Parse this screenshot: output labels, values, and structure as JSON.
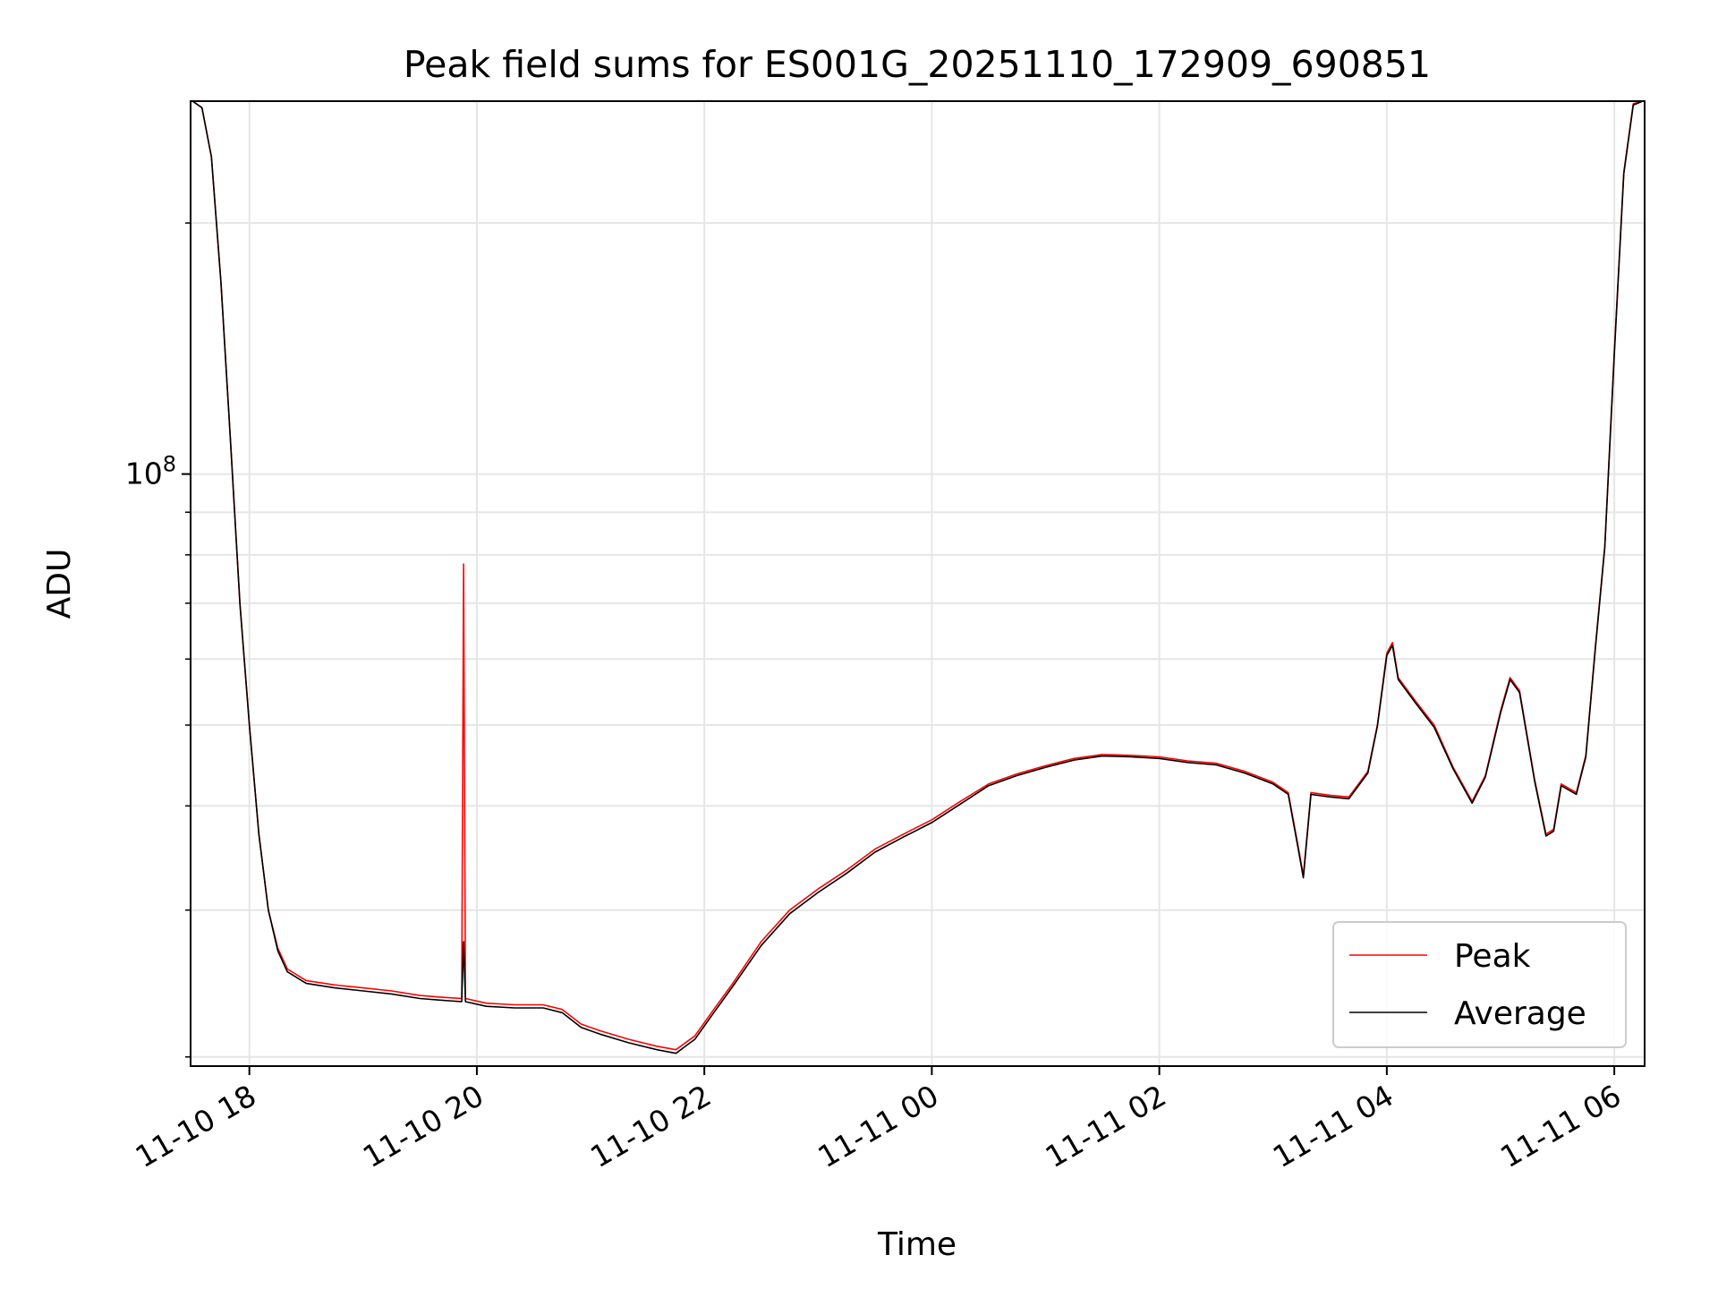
{
  "chart_data": {
    "type": "line",
    "title": "Peak field sums for ES001G_20251110_172909_690851",
    "xlabel": "Time",
    "ylabel": "ADU",
    "xlim": [
      "2025-11-10 17:29",
      "2025-11-11 06:16"
    ],
    "ylim": [
      19500000,
      280000000
    ],
    "yscale": "log",
    "grid": true,
    "legend_position": "lower-right",
    "x_tick_labels": [
      "11-10 18",
      "11-10 20",
      "11-10 22",
      "11-11 00",
      "11-11 02",
      "11-11 04",
      "11-11 06"
    ],
    "x_tick_values": [
      "2025-11-10 18:00",
      "2025-11-10 20:00",
      "2025-11-10 22:00",
      "2025-11-11 00:00",
      "2025-11-11 02:00",
      "2025-11-11 04:00",
      "2025-11-11 06:00"
    ],
    "y_tick_labels": [
      "10^8"
    ],
    "y_tick_values": [
      100000000
    ],
    "y_minor_tick_values": [
      20000000,
      30000000,
      40000000,
      50000000,
      60000000,
      70000000,
      80000000,
      90000000,
      200000000
    ],
    "series": [
      {
        "name": "Peak",
        "color": "#ff0000",
        "points": [
          [
            "2025-11-10 17:30",
            280000000
          ],
          [
            "2025-11-10 17:35",
            275000000
          ],
          [
            "2025-11-10 17:40",
            240000000
          ],
          [
            "2025-11-10 17:45",
            170000000
          ],
          [
            "2025-11-10 17:50",
            110000000
          ],
          [
            "2025-11-10 17:55",
            70000000
          ],
          [
            "2025-11-10 18:00",
            50000000
          ],
          [
            "2025-11-10 18:05",
            37000000
          ],
          [
            "2025-11-10 18:10",
            30000000
          ],
          [
            "2025-11-10 18:15",
            27000000
          ],
          [
            "2025-11-10 18:20",
            25500000
          ],
          [
            "2025-11-10 18:30",
            24700000
          ],
          [
            "2025-11-10 18:45",
            24400000
          ],
          [
            "2025-11-10 19:00",
            24200000
          ],
          [
            "2025-11-10 19:15",
            24000000
          ],
          [
            "2025-11-10 19:30",
            23700000
          ],
          [
            "2025-11-10 19:40",
            23600000
          ],
          [
            "2025-11-10 19:52",
            23500000
          ],
          [
            "2025-11-10 19:53",
            78000000
          ],
          [
            "2025-11-10 19:54",
            23500000
          ],
          [
            "2025-11-10 20:05",
            23200000
          ],
          [
            "2025-11-10 20:20",
            23100000
          ],
          [
            "2025-11-10 20:35",
            23100000
          ],
          [
            "2025-11-10 20:45",
            22800000
          ],
          [
            "2025-11-10 20:55",
            21900000
          ],
          [
            "2025-11-10 21:05",
            21500000
          ],
          [
            "2025-11-10 21:20",
            21000000
          ],
          [
            "2025-11-10 21:35",
            20600000
          ],
          [
            "2025-11-10 21:45",
            20400000
          ],
          [
            "2025-11-10 21:55",
            21200000
          ],
          [
            "2025-11-10 22:05",
            22800000
          ],
          [
            "2025-11-10 22:15",
            24500000
          ],
          [
            "2025-11-10 22:30",
            27500000
          ],
          [
            "2025-11-10 22:45",
            30000000
          ],
          [
            "2025-11-10 23:00",
            31800000
          ],
          [
            "2025-11-10 23:15",
            33500000
          ],
          [
            "2025-11-10 23:30",
            35500000
          ],
          [
            "2025-11-10 23:45",
            37000000
          ],
          [
            "2025-11-11 00:00",
            38500000
          ],
          [
            "2025-11-11 00:15",
            40500000
          ],
          [
            "2025-11-11 00:30",
            42500000
          ],
          [
            "2025-11-11 00:45",
            43700000
          ],
          [
            "2025-11-11 01:00",
            44700000
          ],
          [
            "2025-11-11 01:15",
            45600000
          ],
          [
            "2025-11-11 01:30",
            46100000
          ],
          [
            "2025-11-11 01:45",
            46000000
          ],
          [
            "2025-11-11 02:00",
            45800000
          ],
          [
            "2025-11-11 02:15",
            45300000
          ],
          [
            "2025-11-11 02:30",
            45000000
          ],
          [
            "2025-11-11 02:45",
            44000000
          ],
          [
            "2025-11-11 03:00",
            42700000
          ],
          [
            "2025-11-11 03:08",
            41500000
          ],
          [
            "2025-11-11 03:13",
            36000000
          ],
          [
            "2025-11-11 03:16",
            33000000
          ],
          [
            "2025-11-11 03:20",
            41500000
          ],
          [
            "2025-11-11 03:30",
            41200000
          ],
          [
            "2025-11-11 03:40",
            41000000
          ],
          [
            "2025-11-11 03:50",
            44000000
          ],
          [
            "2025-11-11 03:55",
            50000000
          ],
          [
            "2025-11-11 04:00",
            61000000
          ],
          [
            "2025-11-11 04:03",
            62800000
          ],
          [
            "2025-11-11 04:06",
            57000000
          ],
          [
            "2025-11-11 04:15",
            53500000
          ],
          [
            "2025-11-11 04:25",
            50000000
          ],
          [
            "2025-11-11 04:35",
            44500000
          ],
          [
            "2025-11-11 04:45",
            40500000
          ],
          [
            "2025-11-11 04:52",
            43500000
          ],
          [
            "2025-11-11 05:00",
            52000000
          ],
          [
            "2025-11-11 05:05",
            57000000
          ],
          [
            "2025-11-11 05:10",
            55000000
          ],
          [
            "2025-11-11 05:18",
            43000000
          ],
          [
            "2025-11-11 05:24",
            37000000
          ],
          [
            "2025-11-11 05:28",
            37500000
          ],
          [
            "2025-11-11 05:32",
            42500000
          ],
          [
            "2025-11-11 05:40",
            41500000
          ],
          [
            "2025-11-11 05:45",
            46000000
          ],
          [
            "2025-11-11 05:50",
            62000000
          ],
          [
            "2025-11-11 05:55",
            82000000
          ],
          [
            "2025-11-11 06:00",
            140000000
          ],
          [
            "2025-11-11 06:05",
            230000000
          ],
          [
            "2025-11-11 06:10",
            278000000
          ],
          [
            "2025-11-11 06:15",
            280000000
          ]
        ]
      },
      {
        "name": "Average",
        "color": "#000000",
        "points": [
          [
            "2025-11-10 17:30",
            280000000
          ],
          [
            "2025-11-10 17:35",
            275000000
          ],
          [
            "2025-11-10 17:40",
            240000000
          ],
          [
            "2025-11-10 17:45",
            170000000
          ],
          [
            "2025-11-10 17:50",
            110000000
          ],
          [
            "2025-11-10 17:55",
            70000000
          ],
          [
            "2025-11-10 18:00",
            50000000
          ],
          [
            "2025-11-10 18:05",
            37000000
          ],
          [
            "2025-11-10 18:10",
            30000000
          ],
          [
            "2025-11-10 18:15",
            26800000
          ],
          [
            "2025-11-10 18:20",
            25300000
          ],
          [
            "2025-11-10 18:30",
            24500000
          ],
          [
            "2025-11-10 18:45",
            24200000
          ],
          [
            "2025-11-10 19:00",
            24000000
          ],
          [
            "2025-11-10 19:15",
            23800000
          ],
          [
            "2025-11-10 19:30",
            23500000
          ],
          [
            "2025-11-10 19:40",
            23400000
          ],
          [
            "2025-11-10 19:52",
            23300000
          ],
          [
            "2025-11-10 19:53",
            27500000
          ],
          [
            "2025-11-10 19:54",
            23300000
          ],
          [
            "2025-11-10 20:05",
            23000000
          ],
          [
            "2025-11-10 20:20",
            22900000
          ],
          [
            "2025-11-10 20:35",
            22900000
          ],
          [
            "2025-11-10 20:45",
            22600000
          ],
          [
            "2025-11-10 20:55",
            21700000
          ],
          [
            "2025-11-10 21:05",
            21300000
          ],
          [
            "2025-11-10 21:20",
            20800000
          ],
          [
            "2025-11-10 21:35",
            20400000
          ],
          [
            "2025-11-10 21:45",
            20200000
          ],
          [
            "2025-11-10 21:55",
            21000000
          ],
          [
            "2025-11-10 22:05",
            22600000
          ],
          [
            "2025-11-10 22:15",
            24300000
          ],
          [
            "2025-11-10 22:30",
            27200000
          ],
          [
            "2025-11-10 22:45",
            29700000
          ],
          [
            "2025-11-10 23:00",
            31500000
          ],
          [
            "2025-11-10 23:15",
            33200000
          ],
          [
            "2025-11-10 23:30",
            35200000
          ],
          [
            "2025-11-10 23:45",
            36700000
          ],
          [
            "2025-11-11 00:00",
            38200000
          ],
          [
            "2025-11-11 00:15",
            40200000
          ],
          [
            "2025-11-11 00:30",
            42300000
          ],
          [
            "2025-11-11 00:45",
            43500000
          ],
          [
            "2025-11-11 01:00",
            44500000
          ],
          [
            "2025-11-11 01:15",
            45400000
          ],
          [
            "2025-11-11 01:30",
            45900000
          ],
          [
            "2025-11-11 01:45",
            45800000
          ],
          [
            "2025-11-11 02:00",
            45600000
          ],
          [
            "2025-11-11 02:15",
            45100000
          ],
          [
            "2025-11-11 02:30",
            44800000
          ],
          [
            "2025-11-11 02:45",
            43800000
          ],
          [
            "2025-11-11 03:00",
            42500000
          ],
          [
            "2025-11-11 03:08",
            41300000
          ],
          [
            "2025-11-11 03:13",
            35800000
          ],
          [
            "2025-11-11 03:16",
            32800000
          ],
          [
            "2025-11-11 03:20",
            41300000
          ],
          [
            "2025-11-11 03:30",
            41000000
          ],
          [
            "2025-11-11 03:40",
            40800000
          ],
          [
            "2025-11-11 03:50",
            43800000
          ],
          [
            "2025-11-11 03:55",
            49800000
          ],
          [
            "2025-11-11 04:00",
            60600000
          ],
          [
            "2025-11-11 04:03",
            62300000
          ],
          [
            "2025-11-11 04:06",
            56700000
          ],
          [
            "2025-11-11 04:15",
            53200000
          ],
          [
            "2025-11-11 04:25",
            49700000
          ],
          [
            "2025-11-11 04:35",
            44300000
          ],
          [
            "2025-11-11 04:45",
            40300000
          ],
          [
            "2025-11-11 04:52",
            43300000
          ],
          [
            "2025-11-11 05:00",
            51700000
          ],
          [
            "2025-11-11 05:05",
            56700000
          ],
          [
            "2025-11-11 05:10",
            54700000
          ],
          [
            "2025-11-11 05:18",
            42800000
          ],
          [
            "2025-11-11 05:24",
            36800000
          ],
          [
            "2025-11-11 05:28",
            37300000
          ],
          [
            "2025-11-11 05:32",
            42300000
          ],
          [
            "2025-11-11 05:40",
            41300000
          ],
          [
            "2025-11-11 05:45",
            45800000
          ],
          [
            "2025-11-11 05:50",
            61700000
          ],
          [
            "2025-11-11 05:55",
            81700000
          ],
          [
            "2025-11-11 06:00",
            139000000
          ],
          [
            "2025-11-11 06:05",
            229000000
          ],
          [
            "2025-11-11 06:10",
            277000000
          ],
          [
            "2025-11-11 06:15",
            280000000
          ]
        ]
      }
    ]
  }
}
